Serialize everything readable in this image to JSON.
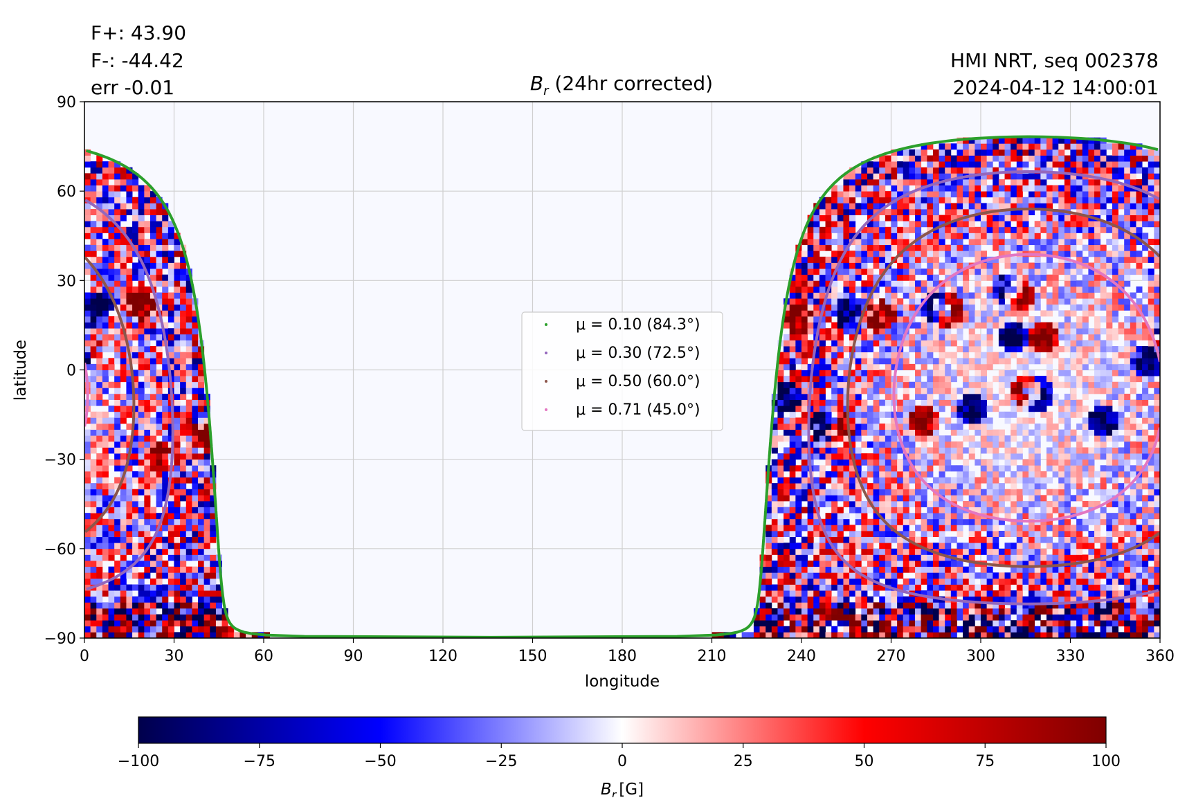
{
  "header": {
    "flux_pos": "F+: 43.90",
    "flux_neg": "F-: -44.42",
    "flux_err": "err -0.01",
    "instrument": "HMI NRT, seq 002378",
    "timestamp": "2024-04-12 14:00:01"
  },
  "chart_data": {
    "type": "heatmap",
    "title": "B_r (24hr corrected)",
    "title_main": "B",
    "title_sub": "r",
    "title_rest": " (24hr corrected)",
    "xlabel": "longitude",
    "ylabel": "latitude",
    "xlim": [
      0,
      360
    ],
    "ylim": [
      -90,
      90
    ],
    "xticks": [
      0,
      30,
      60,
      90,
      120,
      150,
      180,
      210,
      240,
      270,
      300,
      330,
      360
    ],
    "xtick_labels": [
      "0",
      "30",
      "60",
      "90",
      "120",
      "150",
      "180",
      "210",
      "240",
      "270",
      "300",
      "330",
      "360"
    ],
    "yticks": [
      90,
      60,
      30,
      0,
      -30,
      -60,
      -90
    ],
    "ytick_labels": [
      "90",
      "60",
      "30",
      "0",
      "−30",
      "−60",
      "−90"
    ],
    "grid": true,
    "disk_center": {
      "lon": 316,
      "lat": -6
    },
    "mu_contours": [
      {
        "mu": 0.1,
        "angle_deg": 84.3,
        "label": "μ = 0.10 (84.3°)",
        "color": "#2ca02c"
      },
      {
        "mu": 0.3,
        "angle_deg": 72.5,
        "label": "μ = 0.30 (72.5°)",
        "color": "#9467bd"
      },
      {
        "mu": 0.5,
        "angle_deg": 60.0,
        "label": "μ = 0.50 (60.0°)",
        "color": "#8c564b"
      },
      {
        "mu": 0.71,
        "angle_deg": 45.0,
        "label": "μ = 0.71 (45.0°)",
        "color": "#e377c2"
      }
    ],
    "active_regions": [
      {
        "lon": 308,
        "lat": 26,
        "polarity": "negative"
      },
      {
        "lon": 312,
        "lat": 24,
        "polarity": "positive"
      },
      {
        "lon": 284,
        "lat": 20,
        "polarity": "negative"
      },
      {
        "lon": 288,
        "lat": 19,
        "polarity": "positive"
      },
      {
        "lon": 314,
        "lat": -8,
        "polarity": "positive"
      },
      {
        "lon": 318,
        "lat": -9,
        "polarity": "negative"
      },
      {
        "lon": 310,
        "lat": 10,
        "polarity": "negative"
      },
      {
        "lon": 320,
        "lat": 10,
        "polarity": "positive"
      },
      {
        "lon": 296,
        "lat": -14,
        "polarity": "negative"
      },
      {
        "lon": 280,
        "lat": -18,
        "polarity": "positive"
      },
      {
        "lon": 340,
        "lat": -18,
        "polarity": "negative"
      },
      {
        "lon": 265,
        "lat": 17,
        "polarity": "positive"
      },
      {
        "lon": 254,
        "lat": 18,
        "polarity": "negative"
      },
      {
        "lon": 252,
        "lat": -20,
        "polarity": "positive"
      },
      {
        "lon": 246,
        "lat": -20,
        "polarity": "negative"
      },
      {
        "lon": 237,
        "lat": 16,
        "polarity": "positive"
      },
      {
        "lon": 234,
        "lat": -10,
        "polarity": "negative"
      },
      {
        "lon": 18,
        "lat": 21,
        "polarity": "positive"
      },
      {
        "lon": 4,
        "lat": 20,
        "polarity": "negative"
      },
      {
        "lon": 2,
        "lat": 8,
        "polarity": "positive"
      },
      {
        "lon": 2,
        "lat": 9,
        "polarity": "negative"
      },
      {
        "lon": 40,
        "lat": -22,
        "polarity": "positive"
      },
      {
        "lon": 24,
        "lat": -30,
        "polarity": "positive"
      },
      {
        "lon": 355,
        "lat": 2,
        "polarity": "negative"
      }
    ],
    "colorbar": {
      "label_main": "B",
      "label_sub": "r",
      "label_unit": "[G]",
      "vmin": -100,
      "vmax": 100,
      "ticks": [
        -100,
        -75,
        -50,
        -25,
        0,
        25,
        50,
        75,
        100
      ],
      "tick_labels": [
        "−100",
        "−75",
        "−50",
        "−25",
        "0",
        "25",
        "50",
        "75",
        "100"
      ],
      "colormap": "seismic",
      "colors": [
        "#00004c",
        "#0000ff",
        "#ffffff",
        "#ff0000",
        "#7f0000"
      ]
    },
    "legend_placement": "center",
    "background_color": "#f8f9ff"
  }
}
